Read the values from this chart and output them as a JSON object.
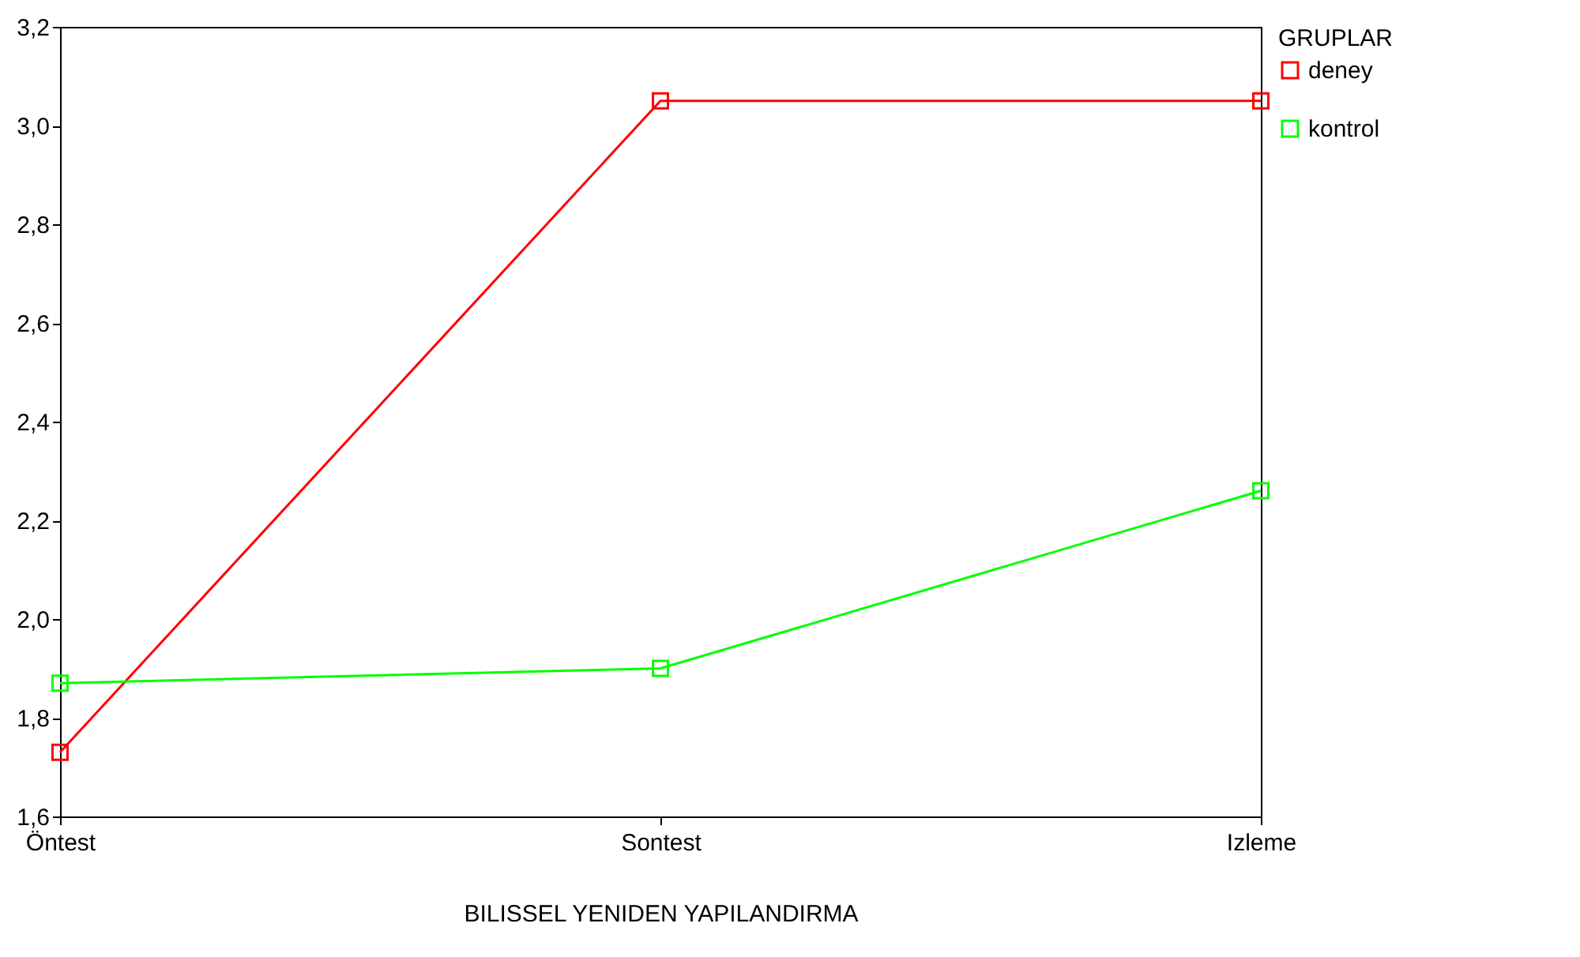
{
  "chart_data": {
    "type": "line",
    "xlabel": "BILISSEL YENIDEN YAPILANDIRMA",
    "legend_title": "GRUPLAR",
    "categories": [
      "Öntest",
      "Sontest",
      "Izleme"
    ],
    "series": [
      {
        "name": "deney",
        "color": "#ff0000",
        "values": [
          1.73,
          3.05,
          3.05
        ]
      },
      {
        "name": "kontrol",
        "color": "#00ff00",
        "values": [
          1.87,
          1.9,
          2.26
        ]
      }
    ],
    "ylim": [
      1.6,
      3.2
    ],
    "yticks": [
      {
        "value": 1.6,
        "label": "1,6"
      },
      {
        "value": 1.8,
        "label": "1,8"
      },
      {
        "value": 2.0,
        "label": "2,0"
      },
      {
        "value": 2.2,
        "label": "2,2"
      },
      {
        "value": 2.4,
        "label": "2,4"
      },
      {
        "value": 2.6,
        "label": "2,6"
      },
      {
        "value": 2.8,
        "label": "2,8"
      },
      {
        "value": 3.0,
        "label": "3,0"
      },
      {
        "value": 3.2,
        "label": "3,2"
      }
    ],
    "grid": false,
    "legend": "right",
    "marker": "square",
    "line_style": "solid"
  }
}
